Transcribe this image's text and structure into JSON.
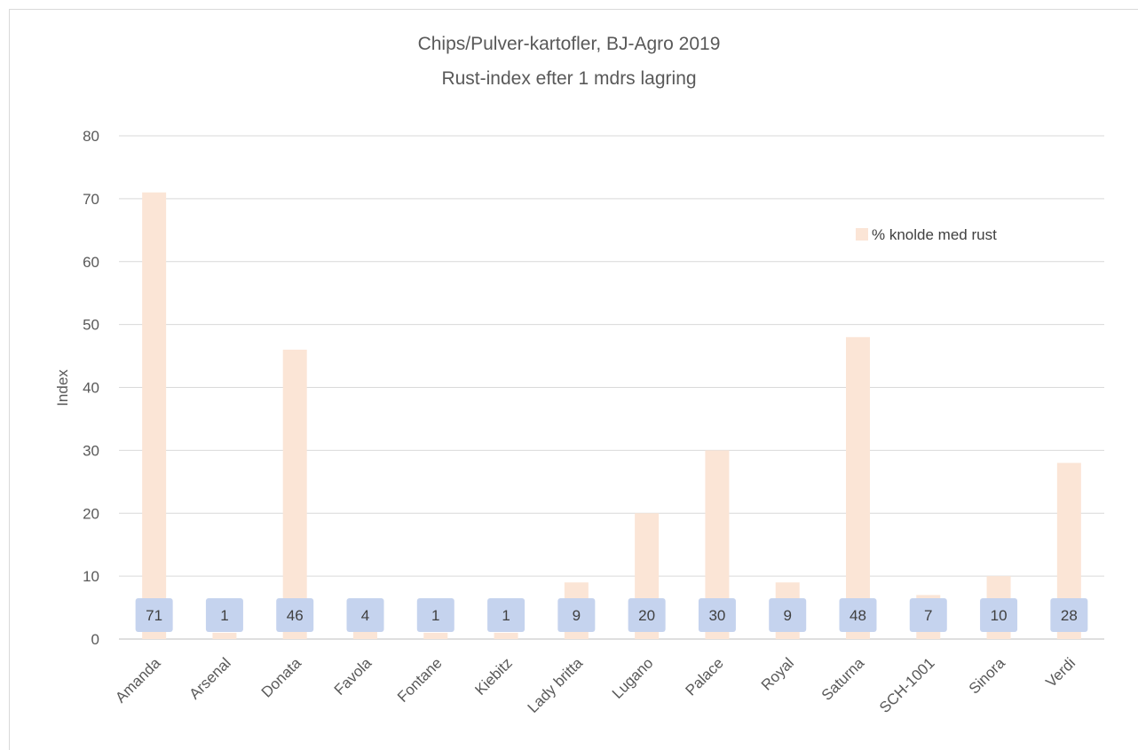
{
  "chart_data": {
    "type": "bar",
    "title": "Chips/Pulver-kartofler, BJ-Agro 2019",
    "subtitle": "Rust-index efter 1 mdrs lagring",
    "xlabel": "",
    "ylabel": "Index",
    "ylim": [
      0,
      80
    ],
    "yticks": [
      0,
      10,
      20,
      30,
      40,
      50,
      60,
      70,
      80
    ],
    "grid": true,
    "legend_position": "top-right",
    "categories": [
      "Amanda",
      "Arsenal",
      "Donata",
      "Favola",
      "Fontane",
      "Kiebitz",
      "Lady britta",
      "Lugano",
      "Palace",
      "Royal",
      "Saturna",
      "SCH-1001",
      "Sinora",
      "Verdi"
    ],
    "series": [
      {
        "name": "% knolde med rust",
        "color": "#fbe5d6",
        "values": [
          71,
          1,
          46,
          4,
          1,
          1,
          9,
          20,
          30,
          9,
          48,
          7,
          10,
          28
        ],
        "data_labels": [
          "71",
          "1",
          "46",
          "4",
          "1",
          "1",
          "9",
          "20",
          "30",
          "9",
          "48",
          "7",
          "10",
          "28"
        ]
      }
    ],
    "colors": {
      "gridline": "#d9d9d9",
      "axis_text": "#595959",
      "label_box": "#c5d3ee"
    }
  }
}
